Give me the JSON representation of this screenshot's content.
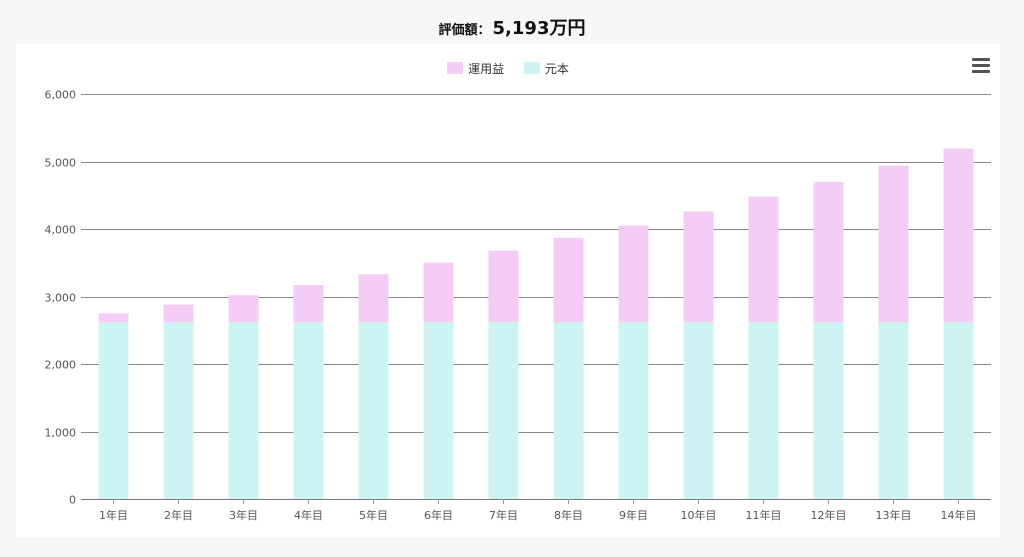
{
  "header": {
    "label": "評価額：",
    "amount": "5,193万円"
  },
  "chart_data": {
    "type": "bar",
    "stacked": true,
    "categories": [
      "1年目",
      "2年目",
      "3年目",
      "4年目",
      "5年目",
      "6年目",
      "7年目",
      "8年目",
      "9年目",
      "10年目",
      "11年目",
      "12年目",
      "13年目",
      "14年目"
    ],
    "series": [
      {
        "name": "元本",
        "color": "#cdf4f3",
        "values": [
          2620,
          2620,
          2620,
          2620,
          2620,
          2620,
          2620,
          2620,
          2620,
          2620,
          2620,
          2620,
          2620,
          2620
        ]
      },
      {
        "name": "運用益",
        "color": "#f5ccf5",
        "values": [
          130,
          260,
          400,
          550,
          710,
          880,
          1060,
          1250,
          1430,
          1640,
          1860,
          2080,
          2320,
          2573
        ]
      }
    ],
    "legend_order": [
      "運用益",
      "元本"
    ],
    "ylim": [
      0,
      6000
    ],
    "yticks": [
      0,
      1000,
      2000,
      3000,
      4000,
      5000,
      6000
    ],
    "ytick_labels": [
      "0",
      "1,000",
      "2,000",
      "3,000",
      "4,000",
      "5,000",
      "6,000"
    ],
    "grid": true,
    "legend_position": "top-center",
    "xlabel": "",
    "ylabel": ""
  }
}
